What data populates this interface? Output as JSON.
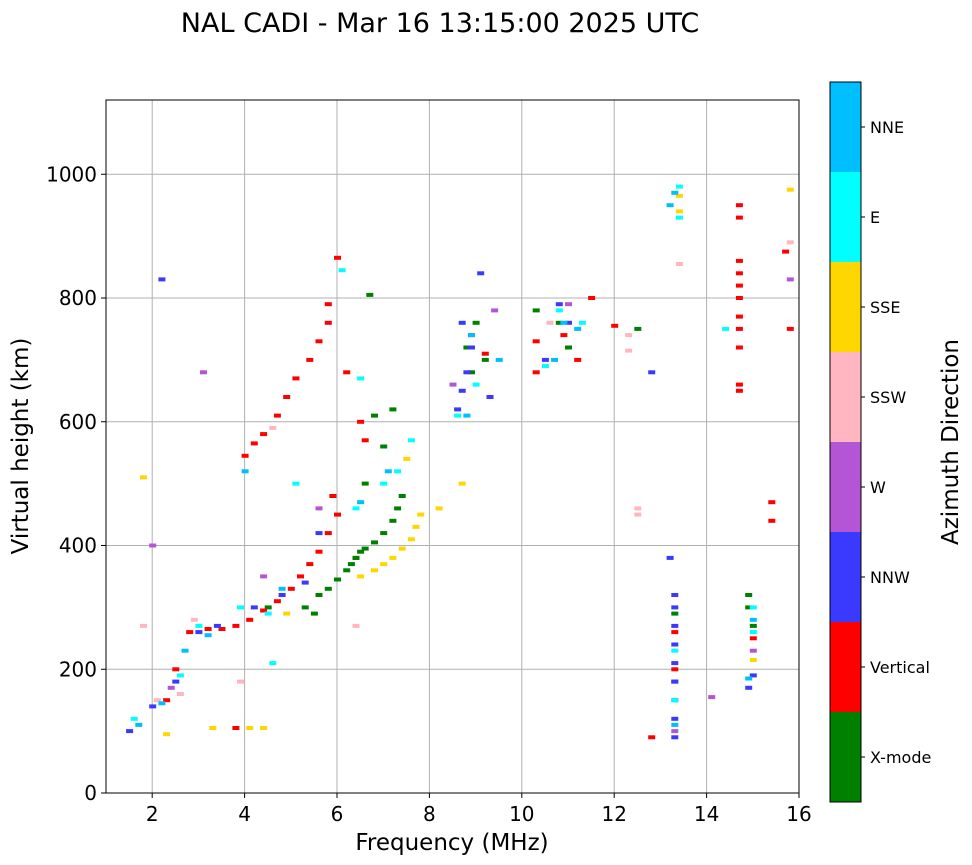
{
  "chart_data": {
    "type": "scatter",
    "title": "NAL CADI - Mar 16 13:15:00 2025 UTC",
    "xlabel": "Frequency (MHz)",
    "ylabel": "Virtual height (km)",
    "xlim": [
      1,
      16
    ],
    "ylim": [
      0,
      1120
    ],
    "xticks": [
      2,
      4,
      6,
      8,
      10,
      12,
      14,
      16
    ],
    "yticks": [
      0,
      200,
      400,
      600,
      800,
      1000
    ],
    "grid": true,
    "colorbar": {
      "label": "Azimuth Direction",
      "categories": [
        "X-mode",
        "Vertical",
        "NNW",
        "W",
        "SSW",
        "SSE",
        "E",
        "NNE"
      ],
      "colors": [
        "#008000",
        "#ff0000",
        "#3a3aff",
        "#b455d5",
        "#ffb6c1",
        "#ffd700",
        "#00ffff",
        "#00bfff"
      ]
    },
    "series": [
      {
        "name": "X-mode",
        "points": [
          [
            5.3,
            300
          ],
          [
            5.6,
            320
          ],
          [
            5.8,
            330
          ],
          [
            6.0,
            345
          ],
          [
            6.2,
            360
          ],
          [
            6.3,
            370
          ],
          [
            6.4,
            380
          ],
          [
            6.5,
            390
          ],
          [
            6.6,
            395
          ],
          [
            6.8,
            405
          ],
          [
            7.0,
            420
          ],
          [
            7.2,
            440
          ],
          [
            7.3,
            460
          ],
          [
            6.6,
            500
          ],
          [
            7.0,
            560
          ],
          [
            7.2,
            620
          ],
          [
            6.8,
            610
          ],
          [
            7.4,
            480
          ],
          [
            5.5,
            290
          ],
          [
            6.4,
            380
          ],
          [
            8.8,
            720
          ],
          [
            9.0,
            760
          ],
          [
            8.9,
            680
          ],
          [
            9.2,
            700
          ],
          [
            10.3,
            780
          ],
          [
            10.8,
            760
          ],
          [
            11.0,
            720
          ],
          [
            12.5,
            750
          ],
          [
            14.9,
            320
          ],
          [
            14.9,
            300
          ],
          [
            15.0,
            270
          ],
          [
            13.3,
            290
          ],
          [
            13.3,
            180
          ],
          [
            4.5,
            300
          ],
          [
            6.7,
            805
          ]
        ]
      },
      {
        "name": "Vertical",
        "points": [
          [
            2.3,
            150
          ],
          [
            2.5,
            200
          ],
          [
            2.8,
            260
          ],
          [
            3.2,
            265
          ],
          [
            3.5,
            265
          ],
          [
            3.8,
            270
          ],
          [
            4.1,
            280
          ],
          [
            4.4,
            295
          ],
          [
            4.7,
            310
          ],
          [
            5.0,
            330
          ],
          [
            5.2,
            350
          ],
          [
            5.4,
            370
          ],
          [
            5.6,
            390
          ],
          [
            5.8,
            420
          ],
          [
            6.0,
            450
          ],
          [
            5.9,
            480
          ],
          [
            4.0,
            545
          ],
          [
            4.2,
            565
          ],
          [
            4.4,
            580
          ],
          [
            4.7,
            610
          ],
          [
            4.9,
            640
          ],
          [
            5.1,
            670
          ],
          [
            5.4,
            700
          ],
          [
            5.6,
            730
          ],
          [
            5.8,
            760
          ],
          [
            5.8,
            790
          ],
          [
            6.0,
            865
          ],
          [
            6.2,
            680
          ],
          [
            6.5,
            600
          ],
          [
            6.6,
            570
          ],
          [
            8.9,
            740
          ],
          [
            9.2,
            710
          ],
          [
            10.3,
            730
          ],
          [
            10.3,
            680
          ],
          [
            10.9,
            740
          ],
          [
            11.2,
            700
          ],
          [
            11.5,
            800
          ],
          [
            12.0,
            755
          ],
          [
            14.7,
            650
          ],
          [
            14.7,
            660
          ],
          [
            14.7,
            720
          ],
          [
            14.7,
            750
          ],
          [
            14.7,
            770
          ],
          [
            14.7,
            800
          ],
          [
            14.7,
            820
          ],
          [
            14.7,
            840
          ],
          [
            14.7,
            860
          ],
          [
            14.7,
            930
          ],
          [
            14.7,
            950
          ],
          [
            15.7,
            875
          ],
          [
            15.8,
            750
          ],
          [
            15.4,
            470
          ],
          [
            15.4,
            440
          ],
          [
            12.8,
            90
          ],
          [
            13.3,
            200
          ],
          [
            13.3,
            260
          ],
          [
            15.0,
            250
          ],
          [
            3.8,
            105
          ]
        ]
      },
      {
        "name": "NNW",
        "points": [
          [
            1.5,
            100
          ],
          [
            2.0,
            140
          ],
          [
            2.5,
            180
          ],
          [
            3.0,
            260
          ],
          [
            3.4,
            270
          ],
          [
            4.2,
            300
          ],
          [
            4.8,
            320
          ],
          [
            5.3,
            340
          ],
          [
            5.6,
            420
          ],
          [
            8.6,
            620
          ],
          [
            8.7,
            650
          ],
          [
            8.8,
            680
          ],
          [
            8.9,
            720
          ],
          [
            8.7,
            760
          ],
          [
            9.3,
            640
          ],
          [
            10.5,
            700
          ],
          [
            10.8,
            790
          ],
          [
            11.0,
            760
          ],
          [
            13.3,
            90
          ],
          [
            13.3,
            120
          ],
          [
            13.3,
            150
          ],
          [
            13.3,
            180
          ],
          [
            13.3,
            210
          ],
          [
            13.3,
            240
          ],
          [
            13.3,
            270
          ],
          [
            13.3,
            300
          ],
          [
            13.3,
            320
          ],
          [
            13.2,
            380
          ],
          [
            14.9,
            170
          ],
          [
            15.0,
            190
          ],
          [
            2.2,
            830
          ],
          [
            12.8,
            680
          ],
          [
            9.1,
            840
          ]
        ]
      },
      {
        "name": "W",
        "points": [
          [
            2.4,
            170
          ],
          [
            4.4,
            350
          ],
          [
            5.6,
            460
          ],
          [
            8.5,
            660
          ],
          [
            9.4,
            780
          ],
          [
            11.0,
            790
          ],
          [
            13.3,
            100
          ],
          [
            14.1,
            155
          ],
          [
            15.0,
            230
          ],
          [
            15.8,
            830
          ],
          [
            3.1,
            680
          ],
          [
            2.0,
            400
          ]
        ]
      },
      {
        "name": "SSW",
        "points": [
          [
            1.8,
            270
          ],
          [
            2.1,
            150
          ],
          [
            2.6,
            160
          ],
          [
            2.9,
            280
          ],
          [
            3.9,
            180
          ],
          [
            4.6,
            590
          ],
          [
            6.4,
            270
          ],
          [
            10.6,
            760
          ],
          [
            12.3,
            715
          ],
          [
            12.3,
            740
          ],
          [
            12.5,
            450
          ],
          [
            12.5,
            460
          ],
          [
            13.4,
            855
          ],
          [
            15.8,
            890
          ]
        ]
      },
      {
        "name": "SSE",
        "points": [
          [
            2.3,
            95
          ],
          [
            3.3,
            105
          ],
          [
            4.1,
            105
          ],
          [
            4.4,
            105
          ],
          [
            4.9,
            290
          ],
          [
            6.5,
            350
          ],
          [
            6.8,
            360
          ],
          [
            7.0,
            370
          ],
          [
            7.2,
            380
          ],
          [
            7.4,
            395
          ],
          [
            7.6,
            410
          ],
          [
            7.7,
            430
          ],
          [
            7.8,
            450
          ],
          [
            8.2,
            460
          ],
          [
            8.7,
            500
          ],
          [
            7.5,
            540
          ],
          [
            13.4,
            940
          ],
          [
            13.4,
            965
          ],
          [
            15.0,
            215
          ],
          [
            15.8,
            975
          ],
          [
            1.8,
            510
          ]
        ]
      },
      {
        "name": "E",
        "points": [
          [
            1.6,
            120
          ],
          [
            2.6,
            190
          ],
          [
            3.0,
            270
          ],
          [
            3.9,
            300
          ],
          [
            4.5,
            290
          ],
          [
            6.4,
            460
          ],
          [
            6.5,
            670
          ],
          [
            7.0,
            500
          ],
          [
            7.3,
            520
          ],
          [
            7.6,
            570
          ],
          [
            8.6,
            610
          ],
          [
            9.0,
            660
          ],
          [
            10.5,
            690
          ],
          [
            10.8,
            780
          ],
          [
            11.3,
            760
          ],
          [
            13.4,
            930
          ],
          [
            13.4,
            980
          ],
          [
            14.4,
            750
          ],
          [
            13.3,
            150
          ],
          [
            13.3,
            230
          ],
          [
            15.0,
            260
          ],
          [
            15.0,
            300
          ],
          [
            6.1,
            845
          ],
          [
            4.6,
            210
          ],
          [
            5.1,
            500
          ]
        ]
      },
      {
        "name": "NNE",
        "points": [
          [
            1.7,
            110
          ],
          [
            2.2,
            145
          ],
          [
            2.7,
            230
          ],
          [
            3.2,
            255
          ],
          [
            4.0,
            520
          ],
          [
            4.8,
            330
          ],
          [
            6.5,
            470
          ],
          [
            7.1,
            520
          ],
          [
            8.8,
            610
          ],
          [
            8.9,
            740
          ],
          [
            9.5,
            700
          ],
          [
            10.7,
            700
          ],
          [
            10.9,
            760
          ],
          [
            11.2,
            750
          ],
          [
            13.2,
            950
          ],
          [
            13.3,
            970
          ],
          [
            14.9,
            185
          ],
          [
            15.0,
            280
          ],
          [
            13.3,
            110
          ]
        ]
      }
    ]
  }
}
